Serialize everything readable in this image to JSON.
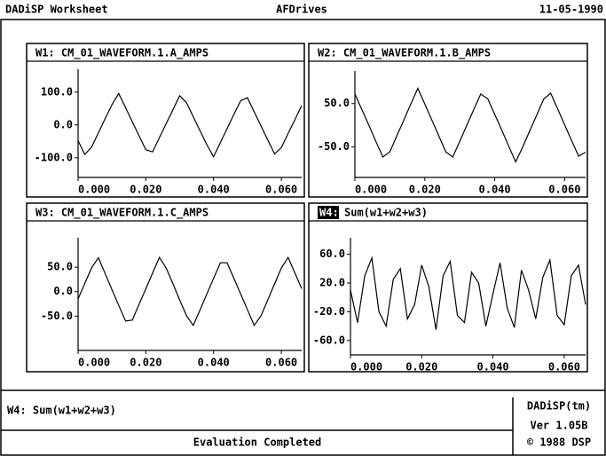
{
  "header": {
    "left": "DADiSP Worksheet",
    "center": "AFDrives",
    "right": "11-05-1990"
  },
  "chart_data": [
    {
      "type": "line",
      "title": "W1: CM_01_WAVEFORM.1.A_AMPS",
      "x": [
        0,
        0.002,
        0.004,
        0.006,
        0.008,
        0.01,
        0.012,
        0.014,
        0.016,
        0.018,
        0.02,
        0.022,
        0.024,
        0.026,
        0.028,
        0.03,
        0.032,
        0.034,
        0.036,
        0.038,
        0.04,
        0.042,
        0.044,
        0.046,
        0.048,
        0.05,
        0.052,
        0.054,
        0.056,
        0.058,
        0.06,
        0.062,
        0.064,
        0.066
      ],
      "series": [
        {
          "color": "#000000",
          "values": [
            -48,
            -90,
            -67,
            -24,
            19,
            62,
            96,
            53,
            10,
            -33,
            -76,
            -82,
            -39,
            4,
            46,
            89,
            68,
            25,
            -18,
            -60,
            -97,
            -54,
            -11,
            32,
            74,
            83,
            40,
            -3,
            -46,
            -88,
            -69,
            -26,
            16,
            59
          ]
        }
      ],
      "xlim": [
        0,
        0.066
      ],
      "ylim": [
        -160,
        170
      ],
      "xticks": [
        {
          "value": 0,
          "label": "0.000"
        },
        {
          "value": 0.02,
          "label": "0.020"
        },
        {
          "value": 0.04,
          "label": "0.040"
        },
        {
          "value": 0.06,
          "label": "0.060"
        }
      ],
      "yticks": [
        {
          "value": 100,
          "label": "100.0"
        },
        {
          "value": 0,
          "label": "0.0"
        },
        {
          "value": -100,
          "label": "-100.0"
        }
      ]
    },
    {
      "type": "line",
      "title": "W2: CM_01_WAVEFORM.1.B_AMPS",
      "x": [
        0,
        0.002,
        0.004,
        0.006,
        0.008,
        0.01,
        0.012,
        0.014,
        0.016,
        0.018,
        0.02,
        0.022,
        0.024,
        0.026,
        0.028,
        0.03,
        0.032,
        0.034,
        0.036,
        0.038,
        0.04,
        0.042,
        0.044,
        0.046,
        0.048,
        0.05,
        0.052,
        0.054,
        0.056,
        0.058,
        0.06,
        0.062,
        0.064,
        0.066
      ],
      "series": [
        {
          "color": "#000000",
          "values": [
            72,
            36,
            0,
            -37,
            -73,
            -61,
            -24,
            12,
            49,
            85,
            49,
            12,
            -24,
            -61,
            -73,
            -37,
            0,
            36,
            72,
            61,
            25,
            -11,
            -48,
            -84,
            -50,
            -13,
            23,
            60,
            74,
            38,
            1,
            -35,
            -71,
            -62
          ]
        }
      ],
      "xlim": [
        0,
        0.066
      ],
      "ylim": [
        -120,
        125
      ],
      "xticks": [
        {
          "value": 0,
          "label": "0.000"
        },
        {
          "value": 0.02,
          "label": "0.020"
        },
        {
          "value": 0.04,
          "label": "0.040"
        },
        {
          "value": 0.06,
          "label": "0.060"
        }
      ],
      "yticks": [
        {
          "value": 50,
          "label": "50.0"
        },
        {
          "value": -50,
          "label": "-50.0"
        }
      ]
    },
    {
      "type": "line",
      "title": "W3: CM_01_WAVEFORM.1.C_AMPS",
      "x": [
        0,
        0.002,
        0.004,
        0.006,
        0.008,
        0.01,
        0.012,
        0.014,
        0.016,
        0.018,
        0.02,
        0.022,
        0.024,
        0.026,
        0.028,
        0.03,
        0.032,
        0.034,
        0.036,
        0.038,
        0.04,
        0.042,
        0.044,
        0.046,
        0.048,
        0.05,
        0.052,
        0.054,
        0.056,
        0.058,
        0.06,
        0.062,
        0.064,
        0.066
      ],
      "series": [
        {
          "color": "#000000",
          "values": [
            -15,
            17,
            49,
            69,
            37,
            4,
            -28,
            -60,
            -58,
            -26,
            6,
            38,
            70,
            48,
            16,
            -17,
            -49,
            -69,
            -37,
            -5,
            27,
            59,
            59,
            27,
            -5,
            -37,
            -69,
            -49,
            -17,
            16,
            48,
            70,
            38,
            6
          ]
        }
      ],
      "xlim": [
        0,
        0.066
      ],
      "ylim": [
        -120,
        110
      ],
      "xticks": [
        {
          "value": 0,
          "label": "0.000"
        },
        {
          "value": 0.02,
          "label": "0.020"
        },
        {
          "value": 0.04,
          "label": "0.040"
        },
        {
          "value": 0.06,
          "label": "0.060"
        }
      ],
      "yticks": [
        {
          "value": 50,
          "label": "50.0"
        },
        {
          "value": 0,
          "label": "0.0"
        },
        {
          "value": -50,
          "label": "-50.0"
        }
      ]
    },
    {
      "type": "line",
      "window": "W4:",
      "title": "Sum(w1+w2+w3)",
      "x": [
        0,
        0.002,
        0.004,
        0.006,
        0.008,
        0.01,
        0.012,
        0.014,
        0.016,
        0.018,
        0.02,
        0.022,
        0.024,
        0.026,
        0.028,
        0.03,
        0.032,
        0.034,
        0.036,
        0.038,
        0.04,
        0.042,
        0.044,
        0.046,
        0.048,
        0.05,
        0.052,
        0.054,
        0.056,
        0.058,
        0.06,
        0.062,
        0.064,
        0.066
      ],
      "series": [
        {
          "color": "#000000",
          "values": [
            10,
            -35,
            30,
            55,
            -20,
            -40,
            25,
            40,
            -30,
            -10,
            45,
            15,
            -45,
            30,
            50,
            -25,
            -35,
            35,
            20,
            -40,
            5,
            48,
            -15,
            -42,
            38,
            10,
            -30,
            28,
            52,
            -25,
            -38,
            30,
            45,
            -10
          ]
        }
      ],
      "xlim": [
        0,
        0.066
      ],
      "ylim": [
        -80,
        83
      ],
      "xticks": [
        {
          "value": 0,
          "label": "0.000"
        },
        {
          "value": 0.02,
          "label": "0.020"
        },
        {
          "value": 0.04,
          "label": "0.040"
        },
        {
          "value": 0.06,
          "label": "0.060"
        }
      ],
      "yticks": [
        {
          "value": 60,
          "label": "60.0"
        },
        {
          "value": 20,
          "label": "20.0"
        },
        {
          "value": -20,
          "label": "-20.0"
        },
        {
          "value": -60,
          "label": "-60.0"
        }
      ]
    }
  ],
  "footer": {
    "command": "W4: Sum(w1+w2+w3)",
    "status": "Evaluation Completed",
    "product": "DADiSP(tm)",
    "version": "Ver 1.05B",
    "copyright": "© 1988 DSP"
  }
}
